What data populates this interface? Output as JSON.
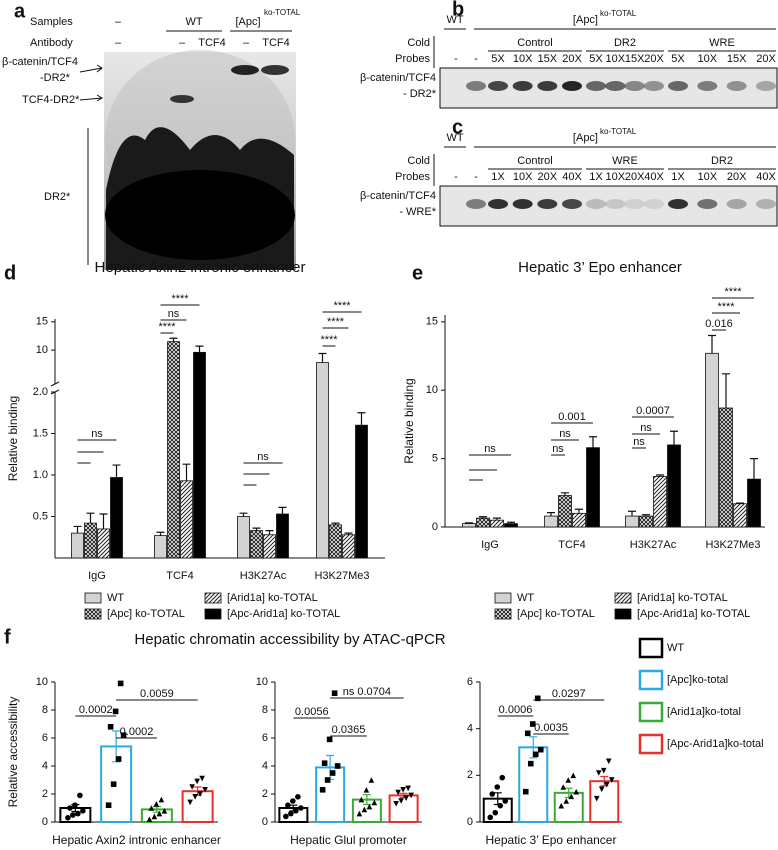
{
  "panels": {
    "a": {
      "letter": "a",
      "rows": [
        "Samples",
        "Antibody"
      ],
      "samples": [
        "–",
        "WT",
        "[Apc]"
      ],
      "samples_sup": "ko-TOTAL",
      "antibody": [
        "–",
        "–",
        "TCF4",
        "–",
        "TCF4"
      ],
      "bands": [
        "β-catenin/TCF4",
        "-DR2*",
        "TCF4-DR2*",
        "DR2*"
      ]
    },
    "b": {
      "letter": "b",
      "wt": "WT",
      "apc": "[Apc]",
      "apc_sup": "ko-TOTAL",
      "cold": "Cold",
      "probes": "Probes",
      "blanks": [
        "-",
        "-"
      ],
      "groups": [
        "Control",
        "DR2",
        "WRE"
      ],
      "lanes": [
        "5X",
        "10X",
        "15X",
        "20X",
        "5X",
        "10X",
        "15X",
        "20X",
        "5X",
        "10X",
        "15X",
        "20X"
      ],
      "band": [
        "β-catenin/TCF4",
        "- DR2*"
      ]
    },
    "c": {
      "letter": "c",
      "wt": "WT",
      "apc": "[Apc]",
      "apc_sup": "ko-TOTAL",
      "cold": "Cold",
      "probes": "Probes",
      "blanks": [
        "-",
        "-"
      ],
      "groups": [
        "Control",
        "WRE",
        "DR2"
      ],
      "lanes": [
        "1X",
        "10X",
        "20X",
        "40X",
        "1X",
        "10X",
        "20X",
        "40X",
        "1X",
        "10X",
        "20X",
        "40X"
      ],
      "band": [
        "β-catenin/TCF4",
        "- WRE*"
      ]
    },
    "d": {
      "letter": "d"
    },
    "e": {
      "letter": "e"
    },
    "f": {
      "letter": "f"
    }
  },
  "chart_data": [
    {
      "type": "bar",
      "title": "Hepatic Axin2 intronic enhancer",
      "ylabel": "Relative binding",
      "categories": [
        "IgG",
        "TCF4",
        "H3K27Ac",
        "H3K27Me3"
      ],
      "ylim": [
        0,
        15.5
      ],
      "ybreak": [
        2,
        4
      ],
      "yticks": [
        0.5,
        {
          "value": 1,
          "label": "1.0"
        },
        1.5,
        {
          "value": 2,
          "label": "2.0"
        },
        10,
        15
      ],
      "legend": "bottom",
      "series": [
        {
          "name": "WT",
          "color": "#d3d3d3",
          "values": [
            0.3,
            0.27,
            0.5,
            7.8
          ],
          "errors": [
            0.08,
            0.04,
            0.04,
            1.6
          ]
        },
        {
          "name": "[Apc] ko-TOTAL",
          "color": "#222222",
          "pattern": "crosshatch",
          "values": [
            0.42,
            11.5,
            0.33,
            0.4
          ],
          "errors": [
            0.12,
            0.6,
            0.03,
            0.02
          ]
        },
        {
          "name": "[Arid1a] ko-TOTAL",
          "color": "#222222",
          "pattern": "stripes",
          "values": [
            0.35,
            0.93,
            0.28,
            0.28
          ],
          "errors": [
            0.18,
            0.2,
            0.05,
            0.02
          ]
        },
        {
          "name": "[Apc-Arid1a] ko-TOTAL",
          "color": "#000000",
          "values": [
            0.97,
            9.6,
            0.53,
            1.6
          ],
          "errors": [
            0.15,
            1.1,
            0.08,
            0.15
          ]
        }
      ],
      "annotations": [
        "ns",
        "****",
        "ns",
        "****",
        "ns",
        "****",
        "****",
        "****"
      ]
    },
    {
      "type": "bar",
      "title": "Hepatic 3’ Epo enhancer",
      "ylabel": "Relative binding",
      "categories": [
        "IgG",
        "TCF4",
        "H3K27Ac",
        "H3K27Me3"
      ],
      "ylim": [
        0,
        15.5
      ],
      "yticks": [
        0,
        5,
        10,
        15
      ],
      "legend": "bottom",
      "series": [
        {
          "name": "WT",
          "color": "#d3d3d3",
          "values": [
            0.25,
            0.8,
            0.8,
            12.7
          ],
          "errors": [
            0.05,
            0.25,
            0.35,
            1.3
          ]
        },
        {
          "name": "[Apc] ko-TOTAL",
          "color": "#222222",
          "pattern": "crosshatch",
          "values": [
            0.65,
            2.3,
            0.8,
            8.7
          ],
          "errors": [
            0.1,
            0.2,
            0.1,
            2.5
          ]
        },
        {
          "name": "[Arid1a] ko-TOTAL",
          "color": "#222222",
          "pattern": "stripes",
          "values": [
            0.5,
            1.0,
            3.7,
            1.7
          ],
          "errors": [
            0.15,
            0.3,
            0.1,
            0.05
          ]
        },
        {
          "name": "[Apc-Arid1a] ko-TOTAL",
          "color": "#000000",
          "values": [
            0.25,
            5.8,
            6.0,
            3.5
          ],
          "errors": [
            0.1,
            0.8,
            1.0,
            1.5
          ]
        }
      ],
      "annotations": [
        "ns",
        "0.001",
        "ns",
        "ns",
        "0.0007",
        "ns",
        "ns",
        "****",
        "****",
        "0.016"
      ]
    },
    {
      "type": "bar",
      "title": "Hepatic chromatin accessibility by ATAC-qPCR",
      "ylabel": "Relative accessibility",
      "categories": [
        "Hepatic Axin2 intronic enhancer"
      ],
      "ylim": [
        0,
        10
      ],
      "yticks": [
        0,
        2,
        4,
        6,
        8,
        10
      ],
      "style": "outline",
      "legend": "right",
      "series": [
        {
          "name": "WT",
          "color": "#000000",
          "marker": "circle",
          "values": [
            1.0
          ],
          "errors": [
            0.25
          ],
          "points": [
            [
              0.3,
              0.5,
              0.6,
              0.8,
              1.0,
              1.2,
              1.9
            ]
          ]
        },
        {
          "name": "[Apc]ko-total",
          "color": "#29abe2",
          "marker": "square",
          "values": [
            5.4
          ],
          "errors": [
            1.1
          ],
          "points": [
            [
              1.2,
              2.7,
              4.5,
              6.2,
              6.8,
              7.9,
              9.9
            ]
          ]
        },
        {
          "name": "[Arid1a]ko-total",
          "color": "#3aaa35",
          "marker": "triangle",
          "values": [
            0.9
          ],
          "errors": [
            0.2
          ],
          "points": [
            [
              0.2,
              0.4,
              0.6,
              0.8,
              1.0,
              1.3,
              1.6
            ]
          ]
        },
        {
          "name": "[Apc-Arid1a]ko-total",
          "color": "#e8312f",
          "marker": "triangle-down",
          "values": [
            2.2
          ],
          "errors": [
            0.3
          ],
          "points": [
            [
              1.4,
              1.8,
              2.0,
              2.3,
              2.5,
              2.9,
              3.1
            ]
          ]
        }
      ],
      "annotations": [
        "0.0002",
        "0.0002",
        "0.0059"
      ]
    },
    {
      "type": "bar",
      "categories": [
        "Hepatic Glul promoter"
      ],
      "ylim": [
        0,
        10
      ],
      "yticks": [
        0,
        2,
        4,
        6,
        8,
        10
      ],
      "style": "outline",
      "series": [
        {
          "color": "#000000",
          "marker": "circle",
          "values": [
            1.0
          ],
          "errors": [
            0.2
          ],
          "points": [
            [
              0.4,
              0.6,
              0.8,
              1.0,
              1.2,
              1.5,
              1.8
            ]
          ]
        },
        {
          "color": "#29abe2",
          "marker": "square",
          "values": [
            3.9
          ],
          "errors": [
            0.85
          ],
          "points": [
            [
              2.3,
              3.0,
              3.5,
              4.0,
              4.2,
              5.9,
              9.2
            ]
          ]
        },
        {
          "color": "#3aaa35",
          "marker": "triangle",
          "values": [
            1.6
          ],
          "errors": [
            0.35
          ],
          "points": [
            [
              0.6,
              0.9,
              1.1,
              1.4,
              1.6,
              2.3,
              3.0
            ]
          ]
        },
        {
          "color": "#e8312f",
          "marker": "triangle-down",
          "values": [
            1.9
          ],
          "errors": [
            0.15
          ],
          "points": [
            [
              1.3,
              1.5,
              1.7,
              1.9,
              2.1,
              2.3,
              2.4
            ]
          ]
        }
      ],
      "annotations": [
        "0.0056",
        "0.0365",
        "ns 0.0704"
      ]
    },
    {
      "type": "bar",
      "categories": [
        "Hepatic 3’ Epo enhancer"
      ],
      "ylim": [
        0,
        6
      ],
      "yticks": [
        0,
        2,
        4,
        6
      ],
      "style": "outline",
      "series": [
        {
          "color": "#000000",
          "marker": "circle",
          "values": [
            1.0
          ],
          "errors": [
            0.25
          ],
          "points": [
            [
              0.2,
              0.4,
              0.7,
              0.9,
              1.2,
              1.5,
              1.9
            ]
          ]
        },
        {
          "color": "#29abe2",
          "marker": "square",
          "values": [
            3.2
          ],
          "errors": [
            0.45
          ],
          "points": [
            [
              1.3,
              2.5,
              2.9,
              3.1,
              3.8,
              4.2,
              5.3
            ]
          ]
        },
        {
          "color": "#3aaa35",
          "marker": "triangle",
          "values": [
            1.25
          ],
          "errors": [
            0.2
          ],
          "points": [
            [
              0.7,
              0.9,
              1.1,
              1.3,
              1.5,
              1.8,
              2.0
            ]
          ]
        },
        {
          "color": "#e8312f",
          "marker": "triangle-down",
          "values": [
            1.75
          ],
          "errors": [
            0.2
          ],
          "points": [
            [
              1.0,
              1.4,
              1.6,
              1.8,
              2.1,
              2.2,
              2.6
            ]
          ]
        }
      ],
      "annotations": [
        "0.0006",
        "0.0035",
        "0.0297"
      ]
    }
  ]
}
